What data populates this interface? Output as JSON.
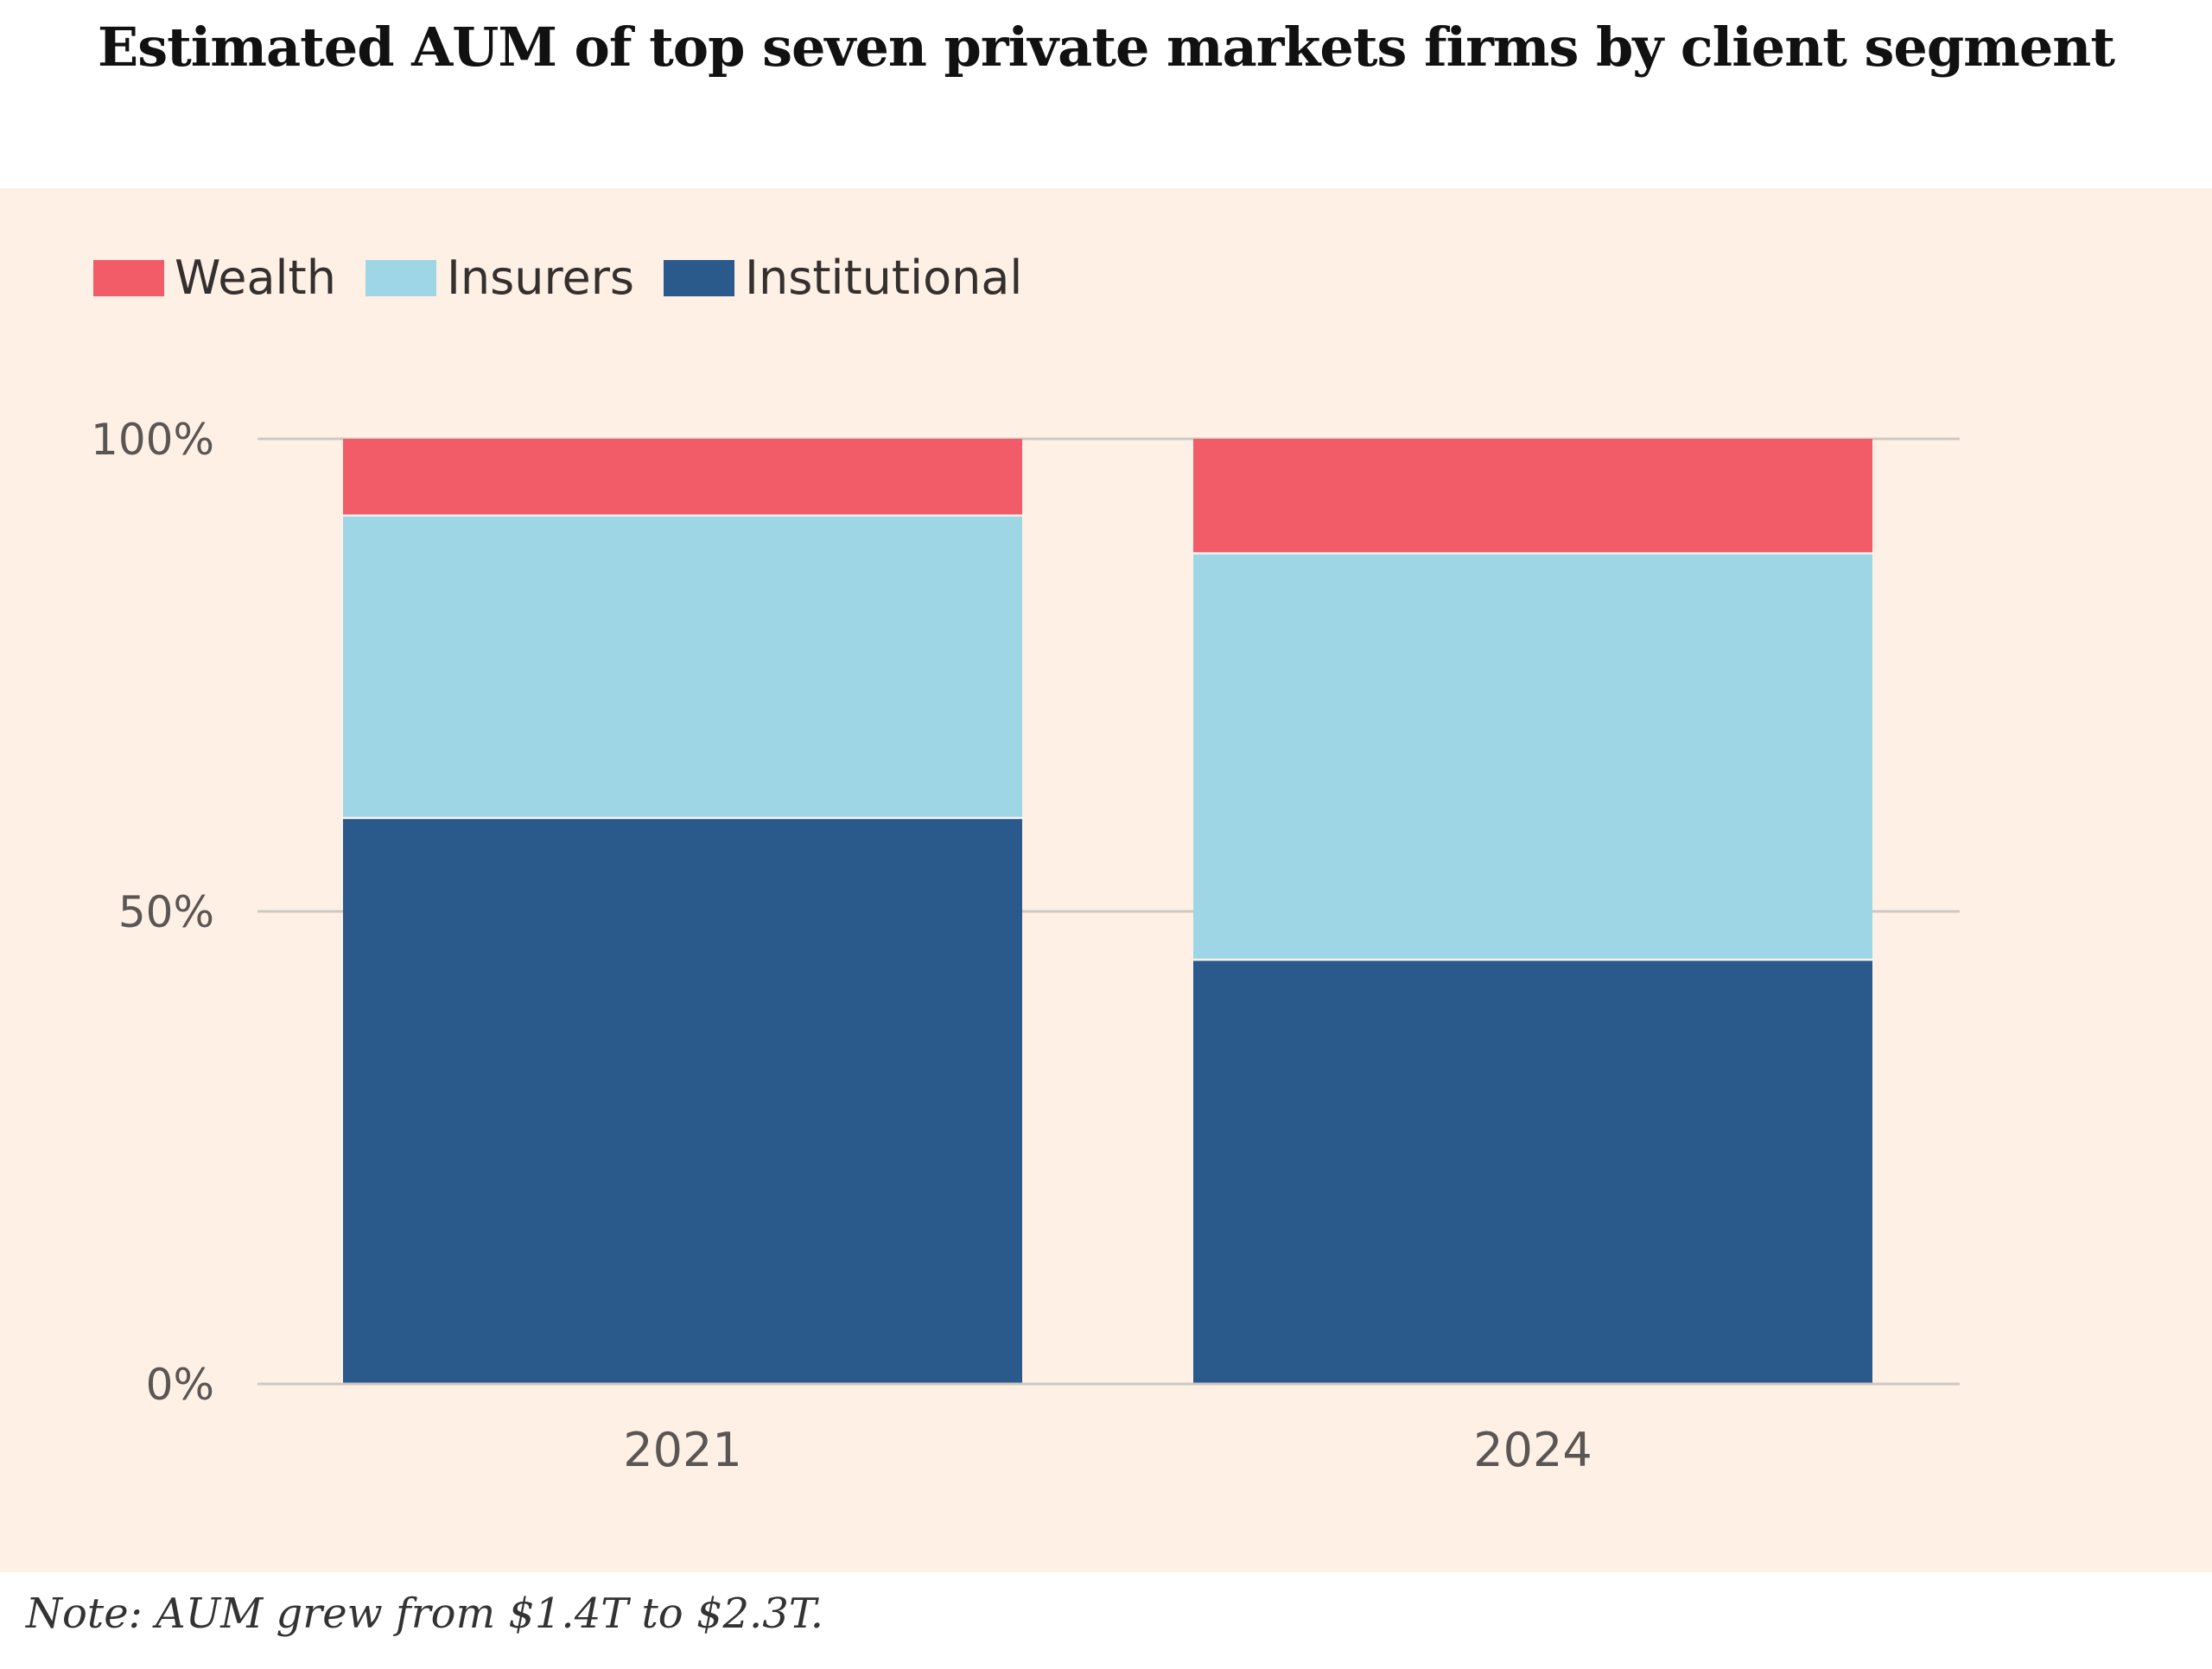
{
  "chart_data": {
    "type": "bar",
    "stacked": true,
    "title": "Estimated AUM of top seven private markets firms by client segment",
    "categories": [
      "2021",
      "2024"
    ],
    "series": [
      {
        "name": "Institutional",
        "values": [
          60,
          45
        ],
        "color": "#2a5a8c"
      },
      {
        "name": "Insurers",
        "values": [
          32,
          43
        ],
        "color": "#9fd6e6"
      },
      {
        "name": "Wealth",
        "values": [
          8,
          12
        ],
        "color": "#f15c68"
      }
    ],
    "legend_order": [
      "Wealth",
      "Insurers",
      "Institutional"
    ],
    "yticks": [
      {
        "value": 0,
        "label": "0%"
      },
      {
        "value": 50,
        "label": "50%"
      },
      {
        "value": 100,
        "label": "100%"
      }
    ],
    "ylim": [
      0,
      100
    ],
    "xlabel": "",
    "ylabel": "",
    "grid": true,
    "legend_position": "top-left"
  },
  "colors": {
    "background": "#fff0e6",
    "gridline": "#cfc7c0",
    "separator": "#f7f2ee"
  },
  "note": "Note: AUM grew from $1.4T to $2.3T."
}
